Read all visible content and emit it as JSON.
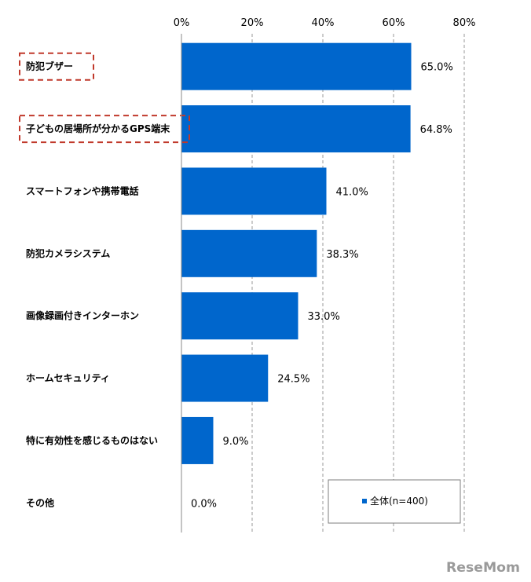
{
  "chart_data": {
    "type": "bar",
    "orientation": "horizontal",
    "categories": [
      "防犯ブザー",
      "子どもの居場所が分かるGPS端末",
      "スマートフォンや携帯電話",
      "防犯カメラシステム",
      "画像録画付きインターホン",
      "ホームセキュリティ",
      "特に有効性を感じるものはない",
      "その他"
    ],
    "series": [
      {
        "name": "全体(n=400)",
        "values": [
          65.0,
          64.8,
          41.0,
          38.3,
          33.0,
          24.5,
          9.0,
          0.0
        ],
        "value_labels": [
          "65.0%",
          "64.8%",
          "41.0%",
          "38.3%",
          "33.0%",
          "24.5%",
          "9.0%",
          "0.0%"
        ]
      }
    ],
    "xlim": [
      0,
      80
    ],
    "ticks": [
      0,
      20,
      40,
      60,
      80
    ],
    "tick_labels": [
      "0%",
      "20%",
      "40%",
      "60%",
      "80%"
    ],
    "gridlines": "dashed vertical",
    "highlighted_categories": [
      0,
      1
    ],
    "legend_position": "bottom-right",
    "bar_color": "#0066cc"
  },
  "watermark": "ReseMom"
}
